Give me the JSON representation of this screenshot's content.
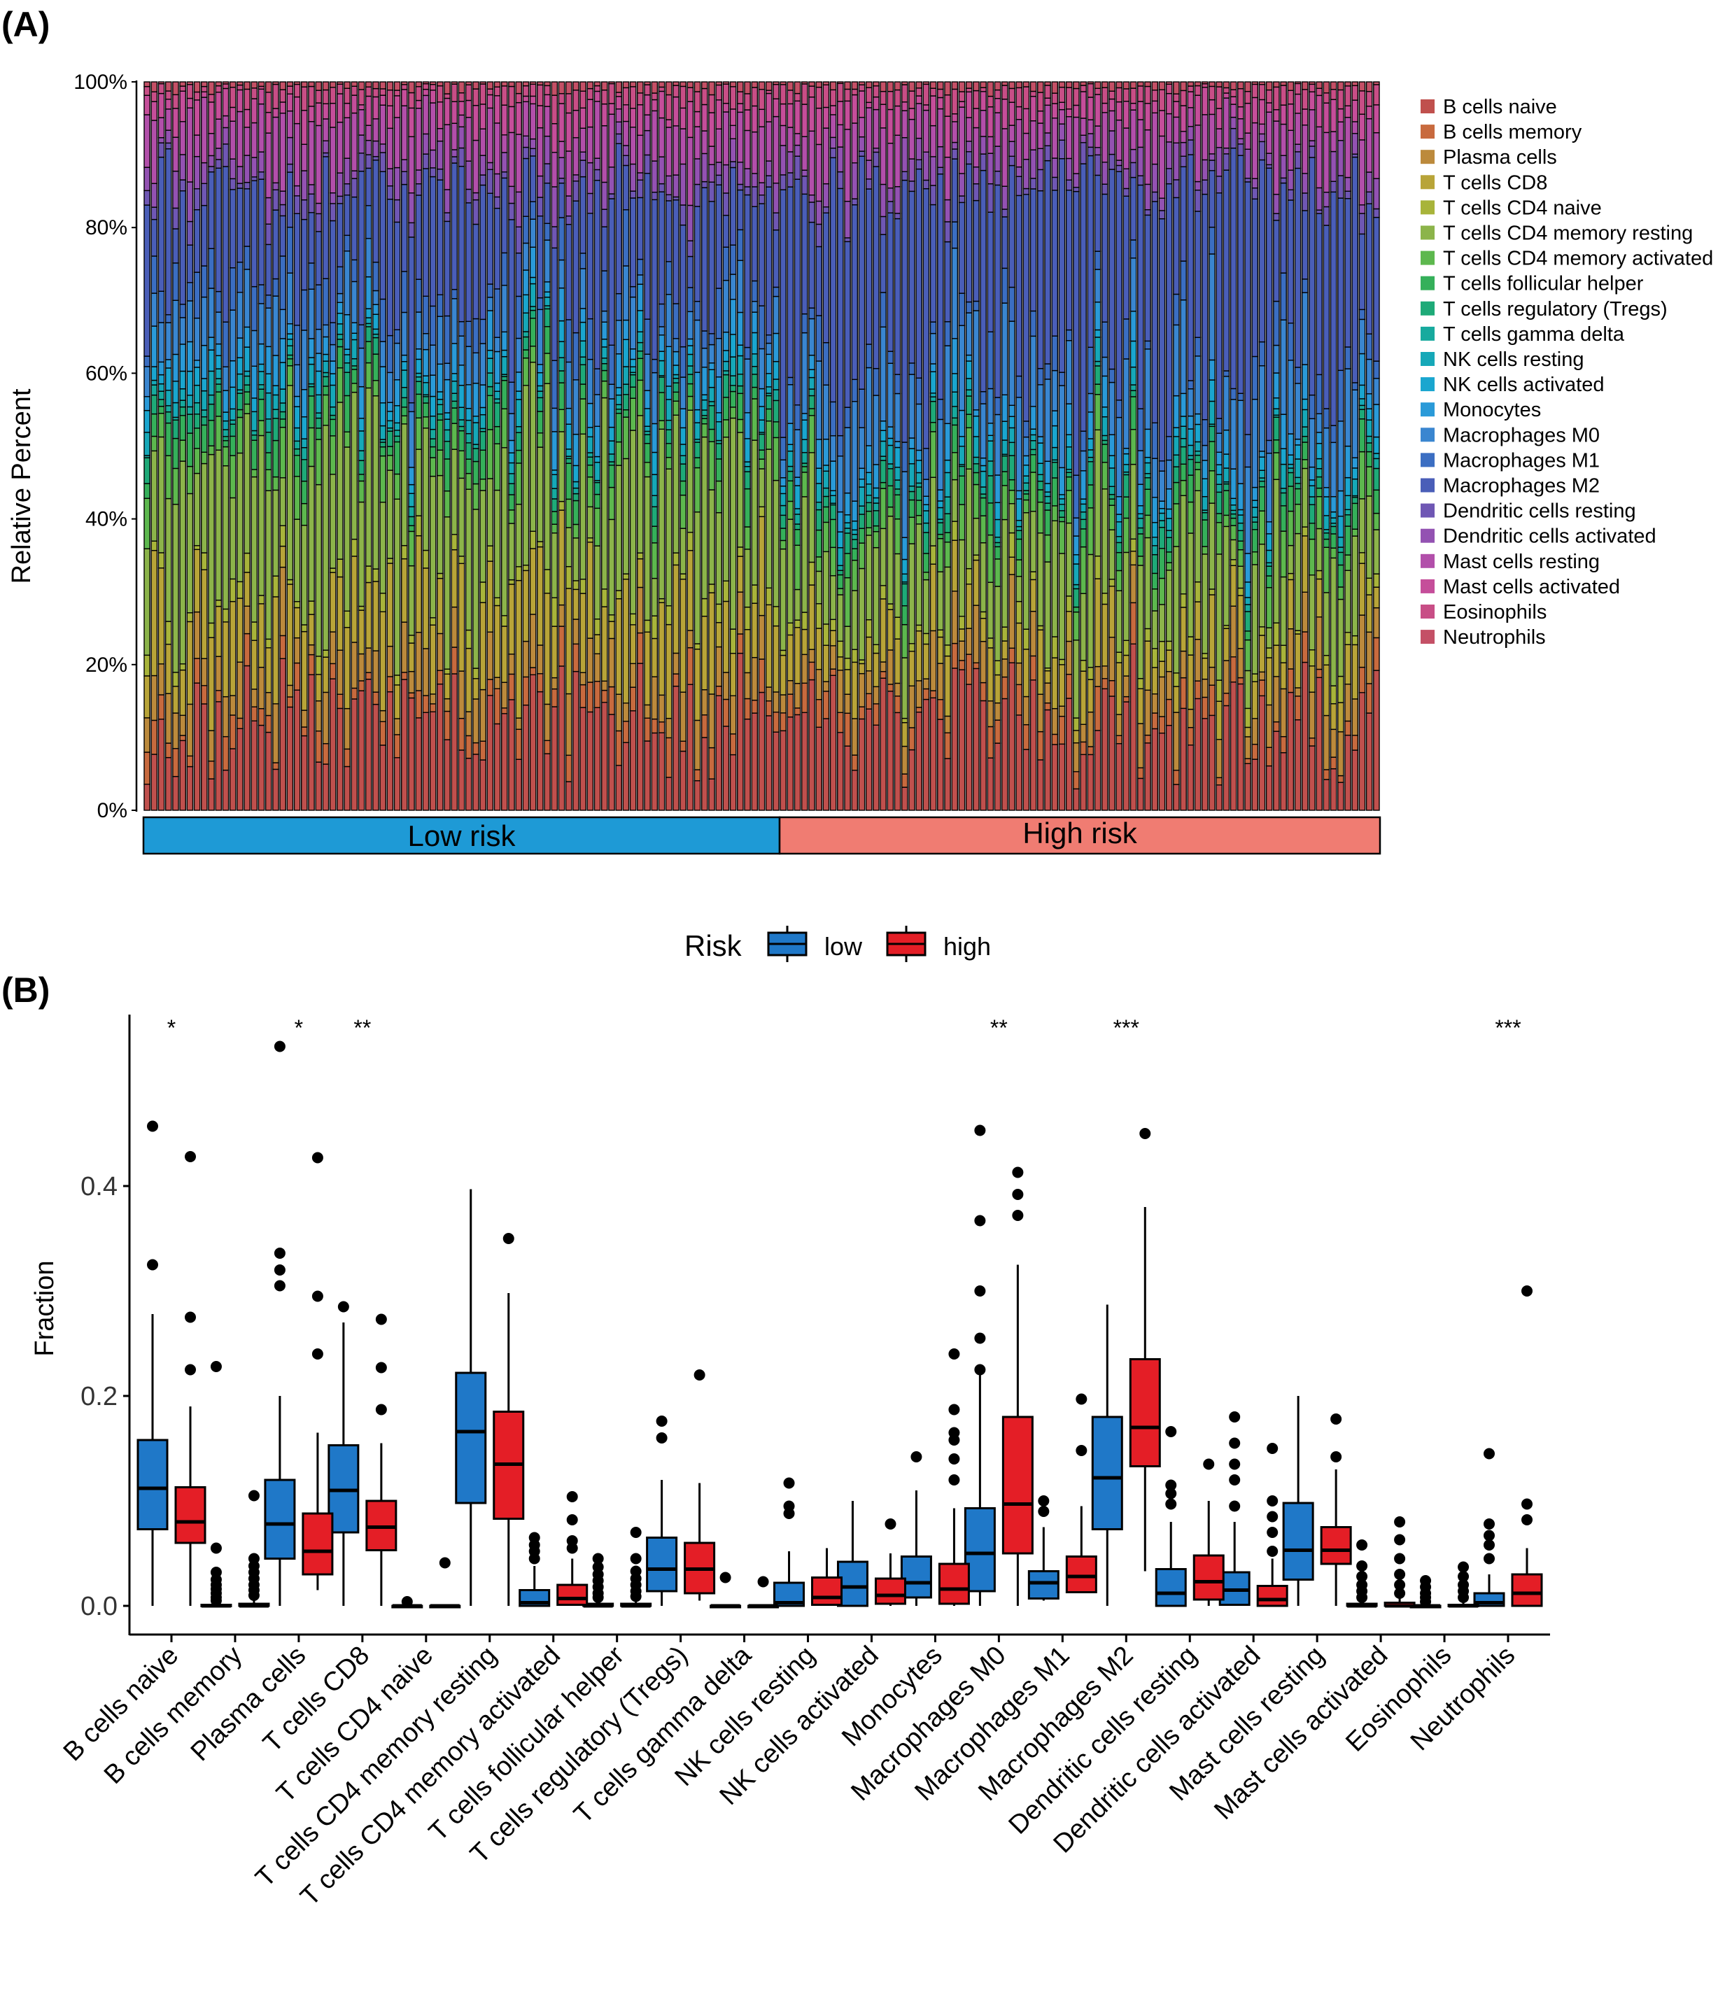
{
  "panel_a": {
    "label": "(A)",
    "chart_data": {
      "type": "bar",
      "stacked": true,
      "ylabel": "Relative Percent",
      "ylim": [
        0,
        100
      ],
      "yticks": [
        "0%",
        "20%",
        "40%",
        "60%",
        "80%",
        "100%"
      ],
      "groups": [
        {
          "name": "Low risk",
          "color": "#1E9AD6",
          "n_samples": 89
        },
        {
          "name": "High risk",
          "color": "#F07C72",
          "n_samples": 84
        }
      ],
      "series": [
        {
          "name": "B cells naive",
          "color": "#C0504D"
        },
        {
          "name": "B cells memory",
          "color": "#C86A3E"
        },
        {
          "name": "Plasma cells",
          "color": "#BC8A3C"
        },
        {
          "name": "T cells CD8",
          "color": "#B8A438"
        },
        {
          "name": "T cells CD4 naive",
          "color": "#A8B43A"
        },
        {
          "name": "T cells CD4 memory resting",
          "color": "#8CB44A"
        },
        {
          "name": "T cells CD4 memory activated",
          "color": "#5DB84E"
        },
        {
          "name": "T cells follicular helper",
          "color": "#35B05A"
        },
        {
          "name": "T cells regulatory (Tregs)",
          "color": "#1EAA78"
        },
        {
          "name": "T cells gamma delta",
          "color": "#17AA9E"
        },
        {
          "name": "NK cells resting",
          "color": "#16A8B8"
        },
        {
          "name": "NK cells activated",
          "color": "#1AA6CF"
        },
        {
          "name": "Monocytes",
          "color": "#2A9AD8"
        },
        {
          "name": "Macrophages M0",
          "color": "#3A86D0"
        },
        {
          "name": "Macrophages M1",
          "color": "#3B6EC2"
        },
        {
          "name": "Macrophages M2",
          "color": "#4A5EB8"
        },
        {
          "name": "Dendritic cells resting",
          "color": "#6F57B4"
        },
        {
          "name": "Dendritic cells activated",
          "color": "#9352B2"
        },
        {
          "name": "Mast cells resting",
          "color": "#B24FAA"
        },
        {
          "name": "Mast cells activated",
          "color": "#C54E9A"
        },
        {
          "name": "Eosinophils",
          "color": "#C84E86"
        },
        {
          "name": "Neutrophils",
          "color": "#C45066"
        }
      ]
    }
  },
  "panel_b": {
    "label": "(B)",
    "chart_data": {
      "type": "box",
      "ylabel": "Fraction",
      "ylim": [
        -0.04,
        0.58
      ],
      "yticks": [
        "0.0",
        "0.2",
        "0.4"
      ],
      "legend": {
        "title": "Risk",
        "items": [
          {
            "name": "low",
            "color": "#1F78C8"
          },
          {
            "name": "high",
            "color": "#E41E26"
          }
        ]
      },
      "categories": [
        "B cells naive",
        "B cells memory",
        "Plasma cells",
        "T cells CD8",
        "T cells CD4 naive",
        "T cells CD4 memory resting",
        "T cells CD4 memory activated",
        "T cells follicular helper",
        "T cells regulatory (Tregs)",
        "T cells gamma delta",
        "NK cells resting",
        "NK cells activated",
        "Monocytes",
        "Macrophages M0",
        "Macrophages M1",
        "Macrophages M2",
        "Dendritic cells resting",
        "Dendritic cells activated",
        "Mast cells resting",
        "Mast cells activated",
        "Eosinophils",
        "Neutrophils"
      ],
      "significance": [
        "*",
        "",
        "*",
        "**",
        "",
        "",
        "",
        "",
        "",
        "",
        "",
        "",
        "",
        "**",
        "",
        "***",
        "",
        "",
        "",
        "",
        "",
        "***"
      ],
      "series": [
        {
          "name": "low",
          "boxes": [
            {
              "wlo": 0.0,
              "q1": 0.073,
              "med": 0.112,
              "q3": 0.158,
              "whi": 0.278,
              "out": [
                0.325,
                0.457
              ]
            },
            {
              "wlo": 0.0,
              "q1": 0.0,
              "med": 0.0,
              "q3": 0.001,
              "whi": 0.002,
              "out": [
                0.005,
                0.008,
                0.012,
                0.016,
                0.02,
                0.025,
                0.032,
                0.055,
                0.228
              ]
            },
            {
              "wlo": 0.0,
              "q1": 0.045,
              "med": 0.078,
              "q3": 0.12,
              "whi": 0.2,
              "out": [
                0.305,
                0.32,
                0.336,
                0.533
              ]
            },
            {
              "wlo": 0.0,
              "q1": 0.07,
              "med": 0.11,
              "q3": 0.153,
              "whi": 0.27,
              "out": [
                0.285
              ]
            },
            {
              "wlo": 0.0,
              "q1": 0.0,
              "med": 0.0,
              "q3": 0.0,
              "whi": 0.0,
              "out": [
                0.004
              ]
            },
            {
              "wlo": 0.0,
              "q1": 0.098,
              "med": 0.166,
              "q3": 0.222,
              "whi": 0.397,
              "out": []
            },
            {
              "wlo": 0.0,
              "q1": 0.0,
              "med": 0.003,
              "q3": 0.015,
              "whi": 0.038,
              "out": [
                0.045,
                0.052,
                0.058,
                0.065
              ]
            },
            {
              "wlo": 0.0,
              "q1": 0.0,
              "med": 0.0,
              "q3": 0.002,
              "whi": 0.005,
              "out": [
                0.008,
                0.012,
                0.018,
                0.024,
                0.03,
                0.037,
                0.045
              ]
            },
            {
              "wlo": 0.0,
              "q1": 0.014,
              "med": 0.035,
              "q3": 0.065,
              "whi": 0.12,
              "out": [
                0.16,
                0.176
              ]
            },
            {
              "wlo": 0.0,
              "q1": 0.0,
              "med": 0.0,
              "q3": 0.0,
              "whi": 0.0,
              "out": [
                0.027
              ]
            },
            {
              "wlo": 0.0,
              "q1": 0.0,
              "med": 0.003,
              "q3": 0.022,
              "whi": 0.052,
              "out": [
                0.088,
                0.095,
                0.117
              ]
            },
            {
              "wlo": 0.0,
              "q1": 0.0,
              "med": 0.018,
              "q3": 0.042,
              "whi": 0.1,
              "out": []
            },
            {
              "wlo": 0.0,
              "q1": 0.008,
              "med": 0.022,
              "q3": 0.047,
              "whi": 0.11,
              "out": [
                0.142
              ]
            },
            {
              "wlo": 0.0,
              "q1": 0.014,
              "med": 0.05,
              "q3": 0.093,
              "whi": 0.22,
              "out": [
                0.225,
                0.255,
                0.3,
                0.367,
                0.453
              ]
            },
            {
              "wlo": 0.005,
              "q1": 0.007,
              "med": 0.022,
              "q3": 0.033,
              "whi": 0.075,
              "out": [
                0.09,
                0.1
              ]
            },
            {
              "wlo": 0.0,
              "q1": 0.073,
              "med": 0.122,
              "q3": 0.18,
              "whi": 0.287,
              "out": []
            },
            {
              "wlo": 0.0,
              "q1": 0.0,
              "med": 0.012,
              "q3": 0.035,
              "whi": 0.08,
              "out": [
                0.097,
                0.107,
                0.115,
                0.166
              ]
            },
            {
              "wlo": 0.0,
              "q1": 0.001,
              "med": 0.015,
              "q3": 0.032,
              "whi": 0.08,
              "out": [
                0.095,
                0.12,
                0.135,
                0.155,
                0.18
              ]
            },
            {
              "wlo": 0.0,
              "q1": 0.025,
              "med": 0.053,
              "q3": 0.098,
              "whi": 0.2,
              "out": []
            },
            {
              "wlo": 0.0,
              "q1": 0.0,
              "med": 0.0,
              "q3": 0.002,
              "whi": 0.004,
              "out": [
                0.008,
                0.014,
                0.02,
                0.028,
                0.038,
                0.058
              ]
            },
            {
              "wlo": 0.0,
              "q1": 0.0,
              "med": 0.0,
              "q3": 0.0,
              "whi": 0.0,
              "out": [
                0.004,
                0.008,
                0.012,
                0.018,
                0.024
              ]
            },
            {
              "wlo": 0.0,
              "q1": 0.0,
              "med": 0.003,
              "q3": 0.012,
              "whi": 0.03,
              "out": [
                0.045,
                0.058,
                0.067,
                0.078,
                0.145
              ]
            }
          ]
        },
        {
          "name": "high",
          "boxes": [
            {
              "wlo": 0.0,
              "q1": 0.06,
              "med": 0.08,
              "q3": 0.113,
              "whi": 0.19,
              "out": [
                0.225,
                0.275,
                0.428
              ]
            },
            {
              "wlo": 0.0,
              "q1": 0.0,
              "med": 0.0,
              "q3": 0.002,
              "whi": 0.005,
              "out": [
                0.01,
                0.015,
                0.02,
                0.026,
                0.032,
                0.038,
                0.045,
                0.105
              ]
            },
            {
              "wlo": 0.015,
              "q1": 0.03,
              "med": 0.052,
              "q3": 0.088,
              "whi": 0.165,
              "out": [
                0.24,
                0.295,
                0.427
              ]
            },
            {
              "wlo": 0.0,
              "q1": 0.053,
              "med": 0.075,
              "q3": 0.1,
              "whi": 0.155,
              "out": [
                0.187,
                0.227,
                0.273
              ]
            },
            {
              "wlo": 0.0,
              "q1": 0.0,
              "med": 0.0,
              "q3": 0.0,
              "whi": 0.0,
              "out": [
                0.041
              ]
            },
            {
              "wlo": 0.0,
              "q1": 0.083,
              "med": 0.135,
              "q3": 0.185,
              "whi": 0.298,
              "out": [
                0.35
              ]
            },
            {
              "wlo": 0.0,
              "q1": 0.001,
              "med": 0.007,
              "q3": 0.02,
              "whi": 0.045,
              "out": [
                0.055,
                0.062,
                0.082,
                0.104
              ]
            },
            {
              "wlo": 0.0,
              "q1": 0.0,
              "med": 0.0,
              "q3": 0.002,
              "whi": 0.005,
              "out": [
                0.009,
                0.014,
                0.02,
                0.026,
                0.033,
                0.045,
                0.07
              ]
            },
            {
              "wlo": 0.005,
              "q1": 0.012,
              "med": 0.035,
              "q3": 0.06,
              "whi": 0.117,
              "out": [
                0.22
              ]
            },
            {
              "wlo": 0.0,
              "q1": 0.0,
              "med": 0.0,
              "q3": 0.0,
              "whi": 0.0,
              "out": [
                0.023
              ]
            },
            {
              "wlo": 0.0,
              "q1": 0.001,
              "med": 0.008,
              "q3": 0.027,
              "whi": 0.055,
              "out": []
            },
            {
              "wlo": 0.0,
              "q1": 0.002,
              "med": 0.01,
              "q3": 0.026,
              "whi": 0.05,
              "out": [
                0.078
              ]
            },
            {
              "wlo": 0.0,
              "q1": 0.002,
              "med": 0.016,
              "q3": 0.04,
              "whi": 0.093,
              "out": [
                0.12,
                0.14,
                0.158,
                0.165,
                0.187,
                0.24
              ]
            },
            {
              "wlo": 0.0,
              "q1": 0.05,
              "med": 0.097,
              "q3": 0.18,
              "whi": 0.325,
              "out": [
                0.372,
                0.392,
                0.413
              ]
            },
            {
              "wlo": 0.012,
              "q1": 0.013,
              "med": 0.028,
              "q3": 0.047,
              "whi": 0.095,
              "out": [
                0.148,
                0.197
              ]
            },
            {
              "wlo": 0.033,
              "q1": 0.133,
              "med": 0.17,
              "q3": 0.235,
              "whi": 0.38,
              "out": [
                0.45
              ]
            },
            {
              "wlo": 0.0,
              "q1": 0.006,
              "med": 0.023,
              "q3": 0.048,
              "whi": 0.1,
              "out": [
                0.135
              ]
            },
            {
              "wlo": 0.0,
              "q1": 0.0,
              "med": 0.006,
              "q3": 0.019,
              "whi": 0.045,
              "out": [
                0.052,
                0.07,
                0.085,
                0.1,
                0.15
              ]
            },
            {
              "wlo": 0.0,
              "q1": 0.04,
              "med": 0.053,
              "q3": 0.075,
              "whi": 0.13,
              "out": [
                0.142,
                0.178
              ]
            },
            {
              "wlo": 0.0,
              "q1": 0.0,
              "med": 0.0,
              "q3": 0.003,
              "whi": 0.008,
              "out": [
                0.012,
                0.02,
                0.03,
                0.045,
                0.063,
                0.08
              ]
            },
            {
              "wlo": 0.0,
              "q1": 0.0,
              "med": 0.0,
              "q3": 0.001,
              "whi": 0.003,
              "out": [
                0.008,
                0.014,
                0.02,
                0.028,
                0.037
              ]
            },
            {
              "wlo": 0.0,
              "q1": 0.0,
              "med": 0.012,
              "q3": 0.03,
              "whi": 0.055,
              "out": [
                0.082,
                0.097,
                0.3
              ]
            }
          ]
        }
      ]
    }
  }
}
